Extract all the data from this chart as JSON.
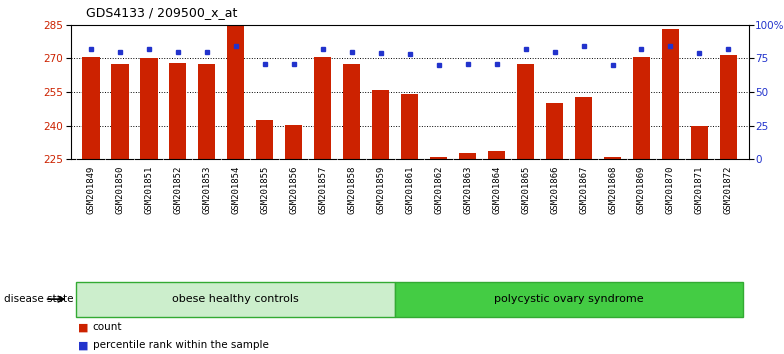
{
  "title": "GDS4133 / 209500_x_at",
  "samples": [
    "GSM201849",
    "GSM201850",
    "GSM201851",
    "GSM201852",
    "GSM201853",
    "GSM201854",
    "GSM201855",
    "GSM201856",
    "GSM201857",
    "GSM201858",
    "GSM201859",
    "GSM201861",
    "GSM201862",
    "GSM201863",
    "GSM201864",
    "GSM201865",
    "GSM201866",
    "GSM201867",
    "GSM201868",
    "GSM201869",
    "GSM201870",
    "GSM201871",
    "GSM201872"
  ],
  "counts": [
    270.5,
    267.5,
    270.0,
    268.0,
    267.5,
    285.0,
    242.5,
    240.5,
    270.5,
    267.5,
    256.0,
    254.0,
    226.0,
    228.0,
    228.5,
    267.5,
    250.0,
    253.0,
    226.0,
    270.5,
    283.0,
    240.0,
    271.5
  ],
  "percentiles": [
    82,
    80,
    82,
    80,
    80,
    84,
    71,
    71,
    82,
    80,
    79,
    78,
    70,
    71,
    71,
    82,
    80,
    84,
    70,
    82,
    84,
    79,
    82
  ],
  "y_min": 225,
  "y_max": 285,
  "y_ticks": [
    225,
    240,
    255,
    270,
    285
  ],
  "right_y_ticks": [
    0,
    25,
    50,
    75,
    100
  ],
  "right_y_labels": [
    "0",
    "25",
    "50",
    "75",
    "100%"
  ],
  "bar_color": "#cc2200",
  "dot_color": "#2233cc",
  "groups": [
    {
      "label": "obese healthy controls",
      "start": 0,
      "end": 11,
      "color": "#cceecc"
    },
    {
      "label": "polycystic ovary syndrome",
      "start": 11,
      "end": 23,
      "color": "#44cc44"
    }
  ],
  "disease_state_label": "disease state",
  "legend_count_label": "count",
  "legend_pct_label": "percentile rank within the sample",
  "background_color": "#ffffff",
  "plot_bg_color": "#ffffff",
  "xtick_bg_color": "#cccccc",
  "title_fontsize": 9,
  "tick_fontsize": 6.5,
  "label_fontsize": 8
}
